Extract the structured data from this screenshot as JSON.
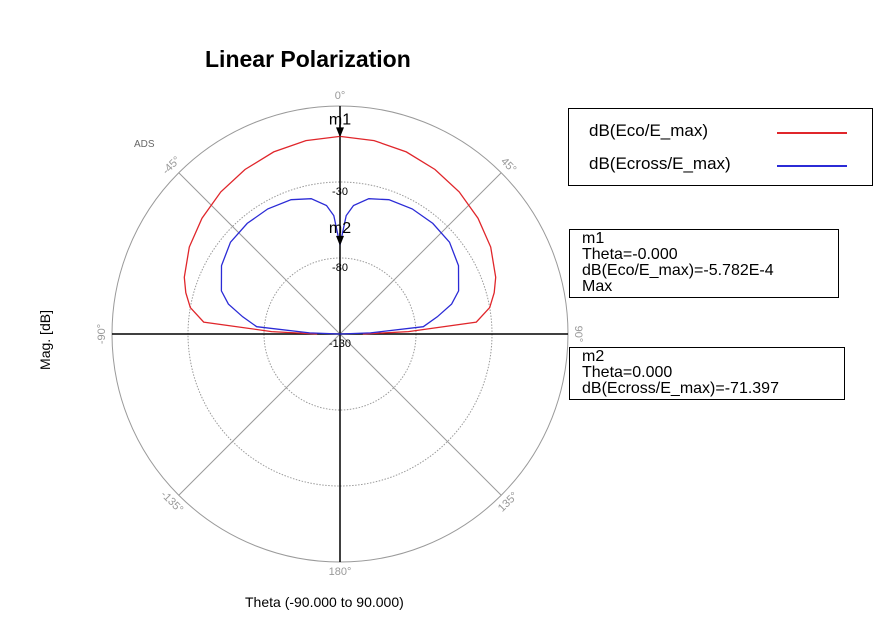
{
  "chart_data": {
    "type": "polar",
    "title": "Linear Polarization",
    "ylabel": "Mag. [dB]",
    "xlabel": "Theta (-90.000 to 90.000)",
    "watermark": "ADS",
    "radial_ticks": [
      "-30",
      "-80",
      "-130"
    ],
    "radial_tick_values": [
      -30,
      -80,
      -130
    ],
    "radial_max": 20,
    "radial_min": -130,
    "angle_labels": [
      {
        "angle": 0,
        "text": "0°"
      },
      {
        "angle": 45,
        "text": "45°"
      },
      {
        "angle": 90,
        "text": "90°"
      },
      {
        "angle": 135,
        "text": "135°"
      },
      {
        "angle": 180,
        "text": "180°"
      },
      {
        "angle": -135,
        "text": "-135°"
      },
      {
        "angle": -90,
        "text": "-90°"
      },
      {
        "angle": -45,
        "text": "-45°"
      }
    ],
    "series": [
      {
        "name": "dB(Eco/E_max)",
        "color": "#e0262b",
        "theta": [
          -90,
          -88,
          -85,
          -80,
          -75,
          -70,
          -60,
          -50,
          -40,
          -30,
          -20,
          -10,
          0,
          10,
          20,
          30,
          40,
          50,
          60,
          70,
          75,
          80,
          85,
          88,
          90
        ],
        "values": [
          -115,
          -85,
          -40,
          -30,
          -25,
          -21,
          -15.5,
          -11.5,
          -8,
          -5,
          -2.5,
          -0.8,
          0,
          -0.8,
          -2.5,
          -5,
          -8,
          -11.5,
          -15.5,
          -21,
          -25,
          -30,
          -40,
          -85,
          -115
        ]
      },
      {
        "name": "dB(Ecross/E_max)",
        "color": "#2b2bd6",
        "theta": [
          -90,
          -88,
          -85,
          -80,
          -75,
          -70,
          -60,
          -50,
          -40,
          -30,
          -20,
          -12,
          -6,
          -3,
          0,
          3,
          6,
          12,
          20,
          30,
          40,
          50,
          60,
          70,
          75,
          80,
          85,
          88,
          90
        ],
        "values": [
          -130,
          -110,
          -75,
          -65,
          -54,
          -47,
          -40,
          -36,
          -35,
          -35,
          -36,
          -39,
          -45,
          -52,
          -71.397,
          -52,
          -45,
          -39,
          -36,
          -35,
          -35,
          -36,
          -40,
          -47,
          -54,
          -65,
          -75,
          -110,
          -130
        ]
      }
    ],
    "markers": [
      {
        "name": "m1",
        "theta": 0,
        "value": -0.0005782,
        "lines": [
          "m1",
          "Theta=-0.000",
          "dB(Eco/E_max)=-5.782E-4",
          "Max"
        ]
      },
      {
        "name": "m2",
        "theta": 0,
        "value": -71.397,
        "lines": [
          "m2",
          "Theta=0.000",
          "dB(Ecross/E_max)=-71.397"
        ]
      }
    ],
    "legend_position": "top-right"
  }
}
